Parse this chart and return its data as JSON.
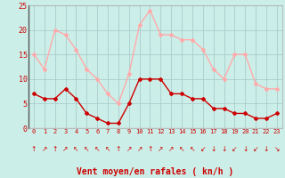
{
  "hours": [
    0,
    1,
    2,
    3,
    4,
    5,
    6,
    7,
    8,
    9,
    10,
    11,
    12,
    13,
    14,
    15,
    16,
    17,
    18,
    19,
    20,
    21,
    22,
    23
  ],
  "wind_avg": [
    7,
    6,
    6,
    8,
    6,
    3,
    2,
    1,
    1,
    5,
    10,
    10,
    10,
    7,
    7,
    6,
    6,
    4,
    4,
    3,
    3,
    2,
    2,
    3
  ],
  "wind_gust": [
    15,
    12,
    20,
    19,
    16,
    12,
    10,
    7,
    5,
    11,
    21,
    24,
    19,
    19,
    18,
    18,
    16,
    12,
    10,
    15,
    15,
    9,
    8,
    8
  ],
  "wind_avg_color": "#cc0000",
  "wind_gust_color": "#ffaaaa",
  "bg_color": "#cceee8",
  "grid_color": "#aacccc",
  "xlabel": "Vent moyen/en rafales ( kn/h )",
  "xlabel_color": "#cc0000",
  "ylim": [
    0,
    25
  ],
  "xlim_min": -0.5,
  "xlim_max": 23.5,
  "yticks": [
    0,
    5,
    10,
    15,
    20,
    25
  ],
  "marker": "D",
  "markersize": 2,
  "linewidth": 1.0,
  "arrows": [
    "↑",
    "↗",
    "↑",
    "↗",
    "↖",
    "↖",
    "↖",
    "↖",
    "↑",
    "↗",
    "↗",
    "↑",
    "↗",
    "↗",
    "↖",
    "↖",
    "↙",
    "↓",
    "↓",
    "↙",
    "↓",
    "↙",
    "↓",
    "↘"
  ]
}
